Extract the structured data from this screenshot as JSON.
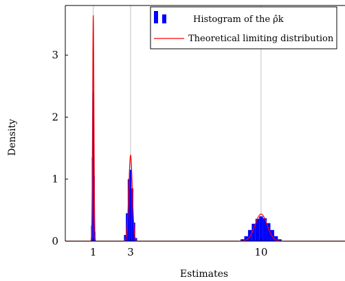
{
  "chart_data": {
    "type": "bar",
    "xlabel": "Estimates",
    "ylabel": "Density",
    "xlim": [
      -0.5,
      14.5
    ],
    "ylim": [
      0,
      3.8
    ],
    "x_ticks": [
      1,
      3,
      10
    ],
    "x_tick_labels": [
      "1",
      "3",
      "10"
    ],
    "y_ticks": [
      0,
      1,
      2,
      3
    ],
    "y_tick_labels": [
      "0",
      "1",
      "2",
      "3"
    ],
    "grid": "vertical lines at x ticks",
    "legend_position": "top-right",
    "colors": {
      "histogram": "#0000ff",
      "curve": "#ff0000",
      "grid": "#b0b0b0"
    },
    "series": [
      {
        "name": "Histogram of the ρ̂k",
        "kind": "histogram",
        "x": [
          0.9,
          0.94,
          0.98,
          1.02,
          1.06,
          1.1,
          2.7,
          2.8,
          2.9,
          3.0,
          3.1,
          3.2,
          3.3,
          9.0,
          9.2,
          9.4,
          9.6,
          9.8,
          10.0,
          10.2,
          10.4,
          10.6,
          10.8,
          11.0
        ],
        "values": [
          0.25,
          1.35,
          3.1,
          2.4,
          1.05,
          0.15,
          0.1,
          0.45,
          1.0,
          1.15,
          0.85,
          0.3,
          0.05,
          0.03,
          0.08,
          0.18,
          0.28,
          0.36,
          0.4,
          0.37,
          0.29,
          0.18,
          0.08,
          0.03
        ]
      },
      {
        "name": "Theoretical limiting distribution",
        "kind": "line",
        "components": [
          {
            "mean": 1,
            "sd": 0.035,
            "weight": 0.32
          },
          {
            "mean": 3,
            "sd": 0.095,
            "weight": 0.33
          },
          {
            "mean": 10,
            "sd": 0.32,
            "weight": 0.35
          }
        ]
      }
    ]
  }
}
